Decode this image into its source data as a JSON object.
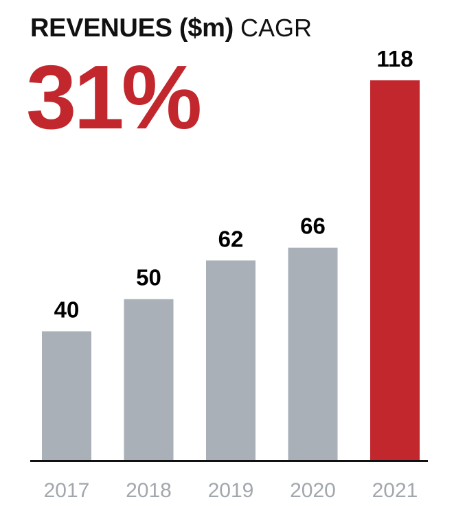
{
  "header": {
    "title": "REVENUES ($m)",
    "subtitle": "CAGR",
    "cagr_value": "31%"
  },
  "colors": {
    "accent": "#c1272d",
    "bar_default": "#aab0b7",
    "tick_text": "#a2a7ad",
    "axis": "#111111"
  },
  "chart_data": {
    "type": "bar",
    "title": "REVENUES ($m)",
    "subtitle": "CAGR 31%",
    "categories": [
      "2017",
      "2018",
      "2019",
      "2020",
      "2021"
    ],
    "values": [
      40,
      50,
      62,
      66,
      118
    ],
    "data_labels": [
      "40",
      "50",
      "62",
      "66",
      "118"
    ],
    "highlight_index": 4,
    "xlabel": "",
    "ylabel": "",
    "ylim": [
      0,
      118
    ],
    "grid": false,
    "legend": "none"
  }
}
